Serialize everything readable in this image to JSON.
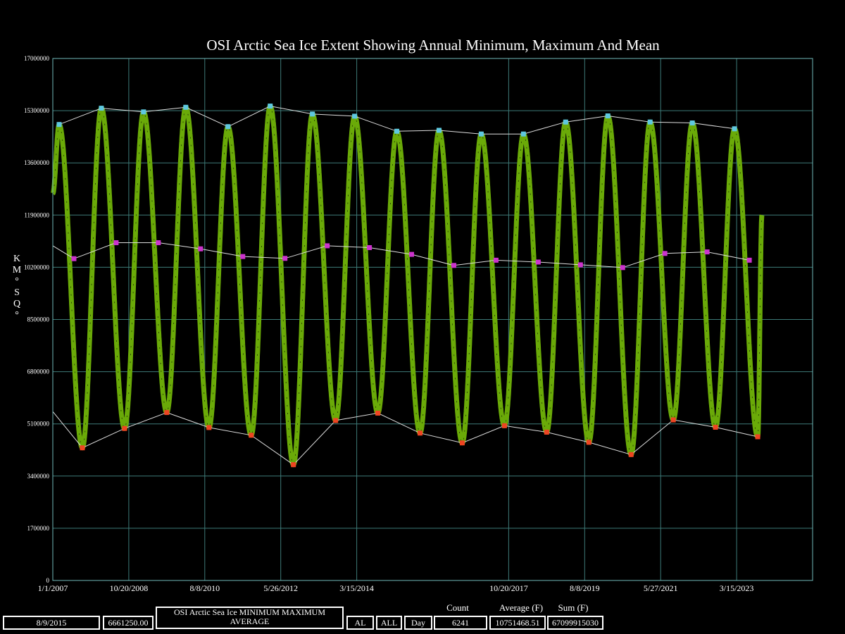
{
  "title": "OSI Arctic Sea Ice Extent Showing Annual Minimum, Maximum And Mean",
  "y_axis_label": "KM°SQ°",
  "colors": {
    "background": "#000000",
    "daily": "#6aaa08",
    "max_marker": "#5ec8e0",
    "mean_marker": "#cc33cc",
    "min_marker": "#ee4422",
    "envelope": "#dddddd",
    "grid": "#3e7b78",
    "frame": "#6fb8b8"
  },
  "chart_data": {
    "type": "line",
    "title": "OSI Arctic Sea Ice Extent Showing Annual Minimum, Maximum And Mean",
    "ylabel": "KM°SQ°",
    "ylim": [
      0,
      17000000
    ],
    "y_ticks": [
      "0",
      "1700000",
      "3400000",
      "5100000",
      "6800000",
      "8500000",
      "10200000",
      "11900000",
      "13600000",
      "15300000",
      "17000000"
    ],
    "x_ticks": [
      {
        "label": "1/1/2007",
        "year": 2007.0
      },
      {
        "label": "10/20/2008",
        "year": 2008.8
      },
      {
        "label": "8/8/2010",
        "year": 2010.6
      },
      {
        "label": "5/26/2012",
        "year": 2012.4
      },
      {
        "label": "3/15/2014",
        "year": 2014.2
      },
      {
        "label": "10/20/2017",
        "year": 2017.8
      },
      {
        "label": "8/8/2019",
        "year": 2019.6
      },
      {
        "label": "5/27/2021",
        "year": 2021.4
      },
      {
        "label": "3/15/2023",
        "year": 2023.2
      }
    ],
    "xlim": [
      2007.0,
      2025.0
    ],
    "grid": true,
    "series": [
      {
        "name": "Daily extent",
        "start_value": 12600000,
        "end": {
          "year": 2023.8,
          "value": 11900000
        }
      },
      {
        "name": "Annual maximum",
        "points": [
          {
            "year": 2007.15,
            "value": 14850000
          },
          {
            "year": 2008.15,
            "value": 15380000
          },
          {
            "year": 2009.15,
            "value": 15260000
          },
          {
            "year": 2010.15,
            "value": 15410000
          },
          {
            "year": 2011.15,
            "value": 14780000
          },
          {
            "year": 2012.15,
            "value": 15450000
          },
          {
            "year": 2013.15,
            "value": 15190000
          },
          {
            "year": 2014.15,
            "value": 15120000
          },
          {
            "year": 2015.15,
            "value": 14630000
          },
          {
            "year": 2016.15,
            "value": 14660000
          },
          {
            "year": 2017.15,
            "value": 14540000
          },
          {
            "year": 2018.15,
            "value": 14540000
          },
          {
            "year": 2019.15,
            "value": 14930000
          },
          {
            "year": 2020.15,
            "value": 15130000
          },
          {
            "year": 2021.15,
            "value": 14930000
          },
          {
            "year": 2022.15,
            "value": 14900000
          },
          {
            "year": 2023.15,
            "value": 14710000
          }
        ]
      },
      {
        "name": "Annual mean",
        "points": [
          {
            "year": 2007.5,
            "value": 10480000
          },
          {
            "year": 2008.5,
            "value": 11000000
          },
          {
            "year": 2009.5,
            "value": 11000000
          },
          {
            "year": 2010.5,
            "value": 10800000
          },
          {
            "year": 2011.5,
            "value": 10550000
          },
          {
            "year": 2012.5,
            "value": 10490000
          },
          {
            "year": 2013.5,
            "value": 10900000
          },
          {
            "year": 2014.5,
            "value": 10840000
          },
          {
            "year": 2015.5,
            "value": 10620000
          },
          {
            "year": 2016.5,
            "value": 10260000
          },
          {
            "year": 2017.5,
            "value": 10430000
          },
          {
            "year": 2018.5,
            "value": 10370000
          },
          {
            "year": 2019.5,
            "value": 10280000
          },
          {
            "year": 2020.5,
            "value": 10190000
          },
          {
            "year": 2021.5,
            "value": 10650000
          },
          {
            "year": 2022.5,
            "value": 10700000
          },
          {
            "year": 2023.5,
            "value": 10430000
          }
        ]
      },
      {
        "name": "Annual minimum",
        "start_value": 5500000,
        "points": [
          {
            "year": 2007.7,
            "value": 4320000
          },
          {
            "year": 2008.7,
            "value": 4950000
          },
          {
            "year": 2009.7,
            "value": 5470000
          },
          {
            "year": 2010.7,
            "value": 4980000
          },
          {
            "year": 2011.7,
            "value": 4730000
          },
          {
            "year": 2012.7,
            "value": 3770000
          },
          {
            "year": 2013.7,
            "value": 5210000
          },
          {
            "year": 2014.7,
            "value": 5450000
          },
          {
            "year": 2015.7,
            "value": 4800000
          },
          {
            "year": 2016.7,
            "value": 4480000
          },
          {
            "year": 2017.7,
            "value": 5040000
          },
          {
            "year": 2018.7,
            "value": 4830000
          },
          {
            "year": 2019.7,
            "value": 4500000
          },
          {
            "year": 2020.7,
            "value": 4100000
          },
          {
            "year": 2021.7,
            "value": 5230000
          },
          {
            "year": 2022.7,
            "value": 4990000
          },
          {
            "year": 2023.7,
            "value": 4680000
          }
        ]
      }
    ]
  },
  "footer": {
    "date": "8/9/2015",
    "value": "6661250.00",
    "description": "OSI Arctic Sea Ice MINIMUM MAXIMUM AVERAGE",
    "region": "AL",
    "range": "ALL",
    "period": "Day",
    "count_label": "Count",
    "count": "6241",
    "average_label": "Average (F)",
    "average": "10751468.51",
    "sum_label": "Sum (F)",
    "sum": "67099915030"
  }
}
